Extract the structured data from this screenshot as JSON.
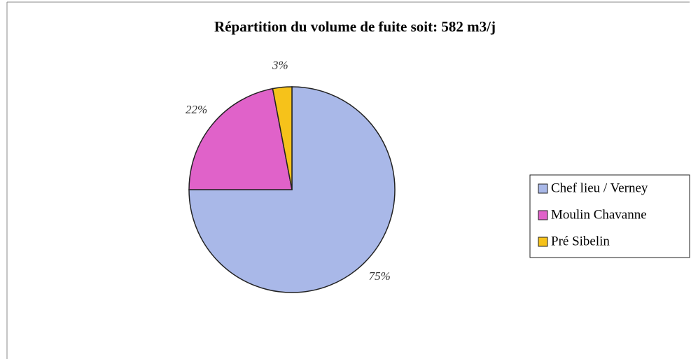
{
  "chart_data": {
    "type": "pie",
    "title": "Répartition du volume de fuite soit: 582 m3/j",
    "categories": [
      "Chef lieu / Verney",
      "Moulin Chavanne",
      "Pré Sibelin"
    ],
    "values": [
      75,
      22,
      3
    ],
    "value_labels": [
      "75%",
      "22%",
      "3%"
    ],
    "colors": [
      "#a9b8e8",
      "#e062c9",
      "#f6c21a"
    ],
    "legend": "right"
  }
}
